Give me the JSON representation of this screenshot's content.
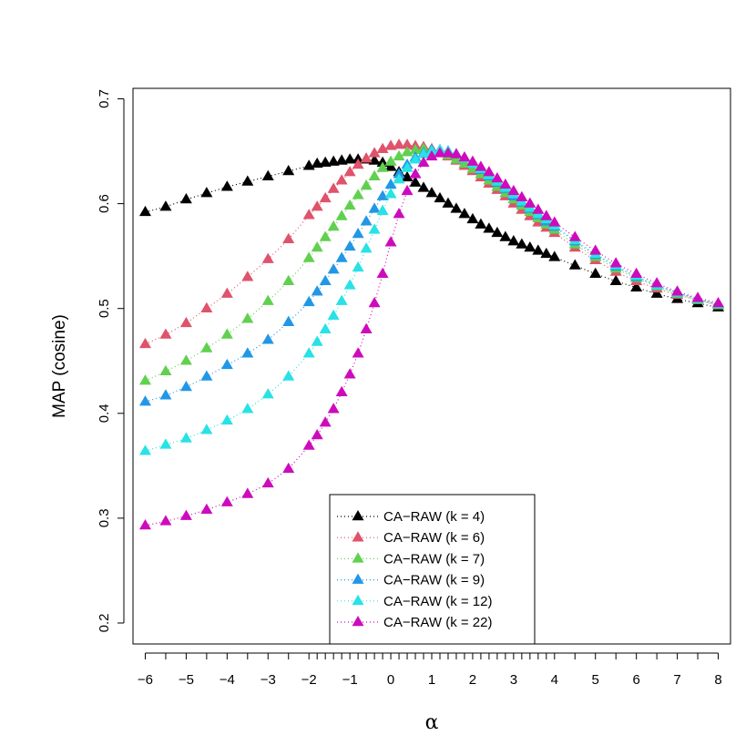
{
  "chart_data": {
    "type": "line",
    "title": "",
    "xlabel": "α",
    "ylabel": "MAP (cosine)",
    "xlim": [
      -6.3,
      8.3
    ],
    "ylim": [
      0.18,
      0.71
    ],
    "grid": false,
    "legend_position": "bottom-center",
    "x_tick_labels": [
      "−6",
      "−5",
      "−4",
      "−3",
      "−2",
      "−1",
      "0",
      "1",
      "2",
      "3",
      "4",
      "5",
      "6",
      "7",
      "8"
    ],
    "y_tick_labels": [
      "0.2",
      "0.3",
      "0.4",
      "0.5",
      "0.6",
      "0.7"
    ],
    "x_minor_ticks": [
      -5.5,
      -4.5,
      -3.5,
      -2.5,
      -1.8,
      -1.6,
      -1.4,
      -1.2,
      -0.8,
      -0.6,
      -0.4,
      -0.2,
      0.2,
      0.4,
      0.6,
      0.8,
      1.2,
      1.4,
      1.6,
      1.8,
      2.2,
      2.4,
      2.6,
      2.8,
      3.2,
      3.4,
      3.6,
      3.8,
      4.5,
      5.5,
      6.5,
      7.5
    ],
    "x": [
      -6,
      -5.5,
      -5,
      -4.5,
      -4,
      -3.5,
      -3,
      -2.5,
      -2,
      -1.8,
      -1.6,
      -1.4,
      -1.2,
      -1,
      -0.8,
      -0.6,
      -0.4,
      -0.2,
      0,
      0.2,
      0.4,
      0.6,
      0.8,
      1,
      1.2,
      1.4,
      1.6,
      1.8,
      2,
      2.2,
      2.4,
      2.6,
      2.8,
      3,
      3.2,
      3.4,
      3.6,
      3.8,
      4,
      4.5,
      5,
      5.5,
      6,
      6.5,
      7,
      7.5,
      8
    ],
    "series": [
      {
        "name": "CA−RAW (k = 4)",
        "color": "#000000",
        "values": [
          0.592,
          0.597,
          0.604,
          0.61,
          0.616,
          0.621,
          0.626,
          0.631,
          0.636,
          0.638,
          0.639,
          0.64,
          0.641,
          0.642,
          0.642,
          0.642,
          0.641,
          0.639,
          0.635,
          0.63,
          0.625,
          0.62,
          0.615,
          0.61,
          0.605,
          0.6,
          0.595,
          0.59,
          0.585,
          0.58,
          0.576,
          0.572,
          0.568,
          0.564,
          0.561,
          0.558,
          0.555,
          0.552,
          0.549,
          0.541,
          0.533,
          0.526,
          0.52,
          0.514,
          0.509,
          0.505,
          0.501
        ]
      },
      {
        "name": "CA−RAW (k = 6)",
        "color": "#DF536B",
        "values": [
          0.466,
          0.475,
          0.486,
          0.5,
          0.514,
          0.53,
          0.547,
          0.566,
          0.589,
          0.597,
          0.605,
          0.614,
          0.622,
          0.63,
          0.637,
          0.643,
          0.648,
          0.652,
          0.655,
          0.656,
          0.656,
          0.655,
          0.654,
          0.652,
          0.649,
          0.645,
          0.641,
          0.636,
          0.631,
          0.625,
          0.619,
          0.613,
          0.607,
          0.6,
          0.594,
          0.588,
          0.582,
          0.577,
          0.572,
          0.558,
          0.546,
          0.535,
          0.526,
          0.519,
          0.513,
          0.508,
          0.503
        ]
      },
      {
        "name": "CA−RAW (k = 7)",
        "color": "#61D04F",
        "values": [
          0.431,
          0.44,
          0.45,
          0.462,
          0.475,
          0.49,
          0.507,
          0.526,
          0.548,
          0.558,
          0.568,
          0.578,
          0.588,
          0.598,
          0.608,
          0.617,
          0.626,
          0.634,
          0.64,
          0.645,
          0.649,
          0.651,
          0.652,
          0.651,
          0.649,
          0.646,
          0.642,
          0.638,
          0.633,
          0.628,
          0.622,
          0.616,
          0.61,
          0.604,
          0.598,
          0.592,
          0.586,
          0.58,
          0.575,
          0.561,
          0.549,
          0.538,
          0.529,
          0.521,
          0.514,
          0.508,
          0.503
        ]
      },
      {
        "name": "CA−RAW (k = 9)",
        "color": "#2297E6",
        "values": [
          0.411,
          0.417,
          0.425,
          0.435,
          0.446,
          0.457,
          0.47,
          0.487,
          0.506,
          0.516,
          0.526,
          0.537,
          0.548,
          0.559,
          0.571,
          0.583,
          0.595,
          0.607,
          0.618,
          0.628,
          0.637,
          0.644,
          0.648,
          0.651,
          0.651,
          0.65,
          0.647,
          0.643,
          0.638,
          0.632,
          0.626,
          0.62,
          0.614,
          0.607,
          0.601,
          0.595,
          0.589,
          0.583,
          0.578,
          0.564,
          0.551,
          0.54,
          0.53,
          0.522,
          0.515,
          0.509,
          0.504
        ]
      },
      {
        "name": "CA−RAW (k = 12)",
        "color": "#28E2E5",
        "values": [
          0.364,
          0.37,
          0.376,
          0.384,
          0.393,
          0.404,
          0.418,
          0.435,
          0.457,
          0.468,
          0.48,
          0.493,
          0.507,
          0.522,
          0.539,
          0.557,
          0.575,
          0.593,
          0.609,
          0.623,
          0.634,
          0.642,
          0.647,
          0.65,
          0.651,
          0.65,
          0.647,
          0.643,
          0.638,
          0.633,
          0.627,
          0.621,
          0.615,
          0.609,
          0.602,
          0.596,
          0.59,
          0.585,
          0.579,
          0.565,
          0.552,
          0.541,
          0.531,
          0.522,
          0.515,
          0.509,
          0.504
        ]
      },
      {
        "name": "CA−RAW (k = 22)",
        "color": "#CD0BBC",
        "values": [
          0.293,
          0.297,
          0.302,
          0.308,
          0.315,
          0.323,
          0.333,
          0.347,
          0.369,
          0.379,
          0.391,
          0.404,
          0.42,
          0.437,
          0.457,
          0.48,
          0.505,
          0.533,
          0.563,
          0.59,
          0.612,
          0.628,
          0.639,
          0.645,
          0.648,
          0.648,
          0.647,
          0.644,
          0.64,
          0.635,
          0.63,
          0.624,
          0.618,
          0.612,
          0.606,
          0.6,
          0.594,
          0.588,
          0.582,
          0.568,
          0.555,
          0.543,
          0.533,
          0.524,
          0.516,
          0.51,
          0.505
        ]
      }
    ]
  }
}
